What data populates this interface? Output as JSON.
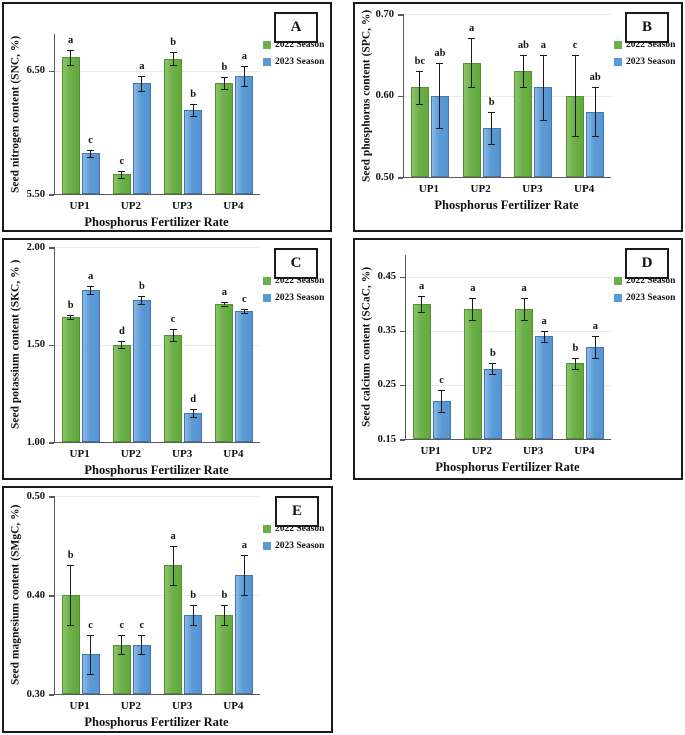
{
  "figure": {
    "legend_labels": [
      "2022 Season",
      "2023 Season"
    ],
    "colors": {
      "green": "#6CB04A",
      "green_border": "#55922F",
      "blue": "#5B9BD5",
      "blue_border": "#4377AE",
      "gridline": "#E9E9E9",
      "axis": "#595959"
    }
  },
  "chart_data": [
    {
      "panel": "A",
      "type": "bar",
      "ylabel": "Seed nitrogen content (SNC, %)",
      "xlabel": "Phosphorus Fertilizer Rate",
      "categories": [
        "UP1",
        "UP2",
        "UP3",
        "UP4"
      ],
      "ylim": [
        5.5,
        6.8
      ],
      "ytick_values": [
        5.5,
        6.5
      ],
      "ytick_labels": [
        "5.50",
        "6.50"
      ],
      "grid": true,
      "legend_position": "right",
      "series": [
        {
          "name": "2022 Season",
          "color": "#6CB04A",
          "values": [
            6.61,
            5.66,
            6.6,
            6.4
          ],
          "errors": [
            0.06,
            0.03,
            0.05,
            0.05
          ],
          "letters": [
            "a",
            "c",
            "b",
            "b"
          ]
        },
        {
          "name": "2023 Season",
          "color": "#5B9BD5",
          "values": [
            5.83,
            6.4,
            6.18,
            6.46
          ],
          "errors": [
            0.03,
            0.06,
            0.05,
            0.08
          ],
          "letters": [
            "c",
            "a",
            "b",
            "a"
          ]
        }
      ]
    },
    {
      "panel": "B",
      "type": "bar",
      "ylabel": "Seed phosphorus content (SPC, %)",
      "xlabel": "Phosphorus Fertilizer Rate",
      "categories": [
        "UP1",
        "UP2",
        "UP3",
        "UP4"
      ],
      "ylim": [
        0.5,
        0.7
      ],
      "ytick_values": [
        0.5,
        0.6,
        0.7
      ],
      "ytick_labels": [
        "0.50",
        "0.60",
        "0.70"
      ],
      "grid": true,
      "legend_position": "right",
      "series": [
        {
          "name": "2022 Season",
          "color": "#6CB04A",
          "values": [
            0.61,
            0.64,
            0.63,
            0.6
          ],
          "errors": [
            0.02,
            0.03,
            0.02,
            0.05
          ],
          "letters": [
            "bc",
            "a",
            "ab",
            "c"
          ]
        },
        {
          "name": "2023 Season",
          "color": "#5B9BD5",
          "values": [
            0.6,
            0.56,
            0.61,
            0.58
          ],
          "errors": [
            0.04,
            0.02,
            0.04,
            0.03
          ],
          "letters": [
            "ab",
            "b",
            "a",
            "ab"
          ]
        }
      ]
    },
    {
      "panel": "C",
      "type": "bar",
      "ylabel": "Seed potassium content (SKC, % )",
      "xlabel": "Phosphorus Fertilizer Rate",
      "categories": [
        "UP1",
        "UP2",
        "UP3",
        "UP4"
      ],
      "ylim": [
        1.0,
        2.0
      ],
      "ytick_values": [
        1.0,
        1.5,
        2.0
      ],
      "ytick_labels": [
        "1.00",
        "1.50",
        "2.00"
      ],
      "grid": true,
      "legend_position": "right",
      "series": [
        {
          "name": "2022 Season",
          "color": "#6CB04A",
          "values": [
            1.64,
            1.5,
            1.55,
            1.71
          ],
          "errors": [
            0.01,
            0.02,
            0.03,
            0.01
          ],
          "letters": [
            "b",
            "d",
            "c",
            "a"
          ]
        },
        {
          "name": "2023 Season",
          "color": "#5B9BD5",
          "values": [
            1.78,
            1.73,
            1.15,
            1.67
          ],
          "errors": [
            0.02,
            0.02,
            0.02,
            0.01
          ],
          "letters": [
            "a",
            "b",
            "d",
            "c"
          ]
        }
      ]
    },
    {
      "panel": "D",
      "type": "bar",
      "ylabel": "Seed calcium content (SCaC, %)",
      "xlabel": "Phosphorus Fertilizer Rate",
      "categories": [
        "UP1",
        "UP2",
        "UP3",
        "UP4"
      ],
      "ylim": [
        0.15,
        0.49
      ],
      "ytick_values": [
        0.15,
        0.25,
        0.35,
        0.45
      ],
      "ytick_labels": [
        "0.15",
        "0.25",
        "0.35",
        "0.45"
      ],
      "grid": true,
      "legend_position": "right",
      "series": [
        {
          "name": "2022 Season",
          "color": "#6CB04A",
          "values": [
            0.4,
            0.39,
            0.39,
            0.29
          ],
          "errors": [
            0.015,
            0.02,
            0.02,
            0.01
          ],
          "letters": [
            "a",
            "a",
            "a",
            "b"
          ]
        },
        {
          "name": "2023 Season",
          "color": "#5B9BD5",
          "values": [
            0.22,
            0.28,
            0.34,
            0.32
          ],
          "errors": [
            0.02,
            0.01,
            0.01,
            0.02
          ],
          "letters": [
            "c",
            "b",
            "a",
            "a"
          ]
        }
      ]
    },
    {
      "panel": "E",
      "type": "bar",
      "ylabel": "Seed magnesium content (SMgC, %)",
      "xlabel": "Phosphorus Fertilizer Rate",
      "categories": [
        "UP1",
        "UP2",
        "UP3",
        "UP4"
      ],
      "ylim": [
        0.3,
        0.5
      ],
      "ytick_values": [
        0.3,
        0.4,
        0.5
      ],
      "ytick_labels": [
        "0.30",
        "0.40",
        "0.50"
      ],
      "grid": true,
      "legend_position": "right",
      "series": [
        {
          "name": "2022 Season",
          "color": "#6CB04A",
          "values": [
            0.4,
            0.35,
            0.43,
            0.38
          ],
          "errors": [
            0.03,
            0.01,
            0.02,
            0.01
          ],
          "letters": [
            "b",
            "c",
            "a",
            "b"
          ]
        },
        {
          "name": "2023 Season",
          "color": "#5B9BD5",
          "values": [
            0.34,
            0.35,
            0.38,
            0.42
          ],
          "errors": [
            0.02,
            0.01,
            0.01,
            0.02
          ],
          "letters": [
            "c",
            "c",
            "b",
            "a"
          ]
        }
      ]
    }
  ]
}
